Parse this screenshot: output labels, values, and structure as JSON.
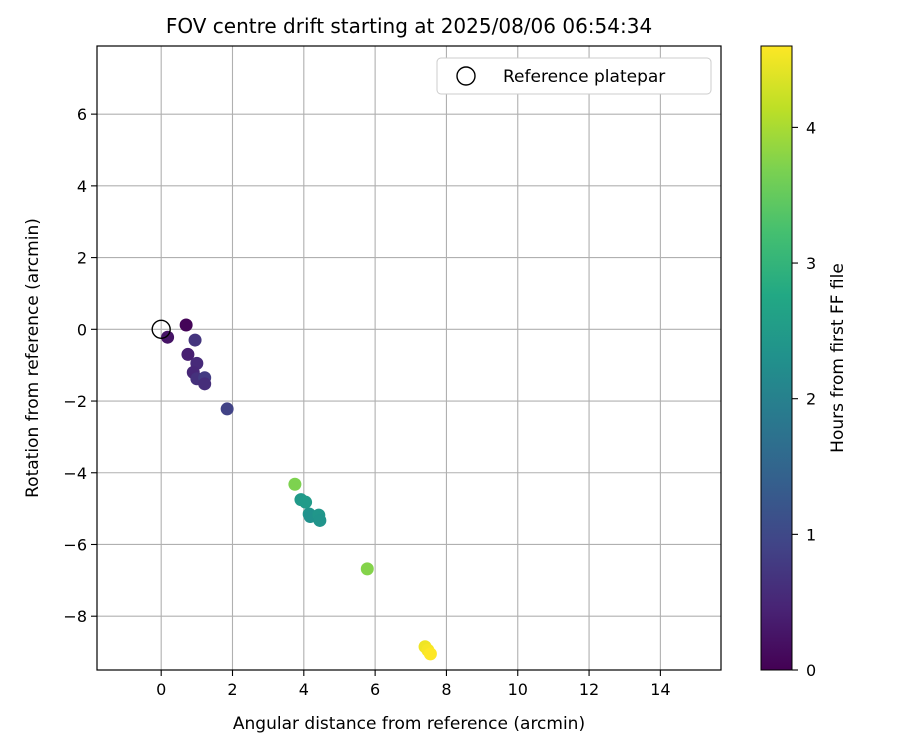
{
  "chart_data": {
    "type": "scatter",
    "title": "FOV centre drift starting at 2025/08/06 06:54:34",
    "xlabel": "Angular distance from reference (arcmin)",
    "ylabel": "Rotation from reference (arcmin)",
    "xlim": [
      -1.8,
      15.7
    ],
    "ylim": [
      -9.5,
      7.9
    ],
    "xticks": [
      0,
      2,
      4,
      6,
      8,
      10,
      12,
      14
    ],
    "yticks": [
      -8,
      -6,
      -4,
      -2,
      0,
      2,
      4,
      6
    ],
    "grid": true,
    "legend": {
      "placement": "top-right",
      "entries": [
        "Reference platepar"
      ]
    },
    "reference_point": {
      "x": 0,
      "y": 0,
      "label": "Reference platepar"
    },
    "colorbar": {
      "label": "Hours from first FF file",
      "range": [
        0,
        4.6
      ],
      "ticks": [
        0,
        1,
        2,
        3,
        4
      ],
      "colormap": "viridis"
    },
    "points": [
      {
        "x": 0.7,
        "y": 0.12,
        "hours": 0.05
      },
      {
        "x": 0.18,
        "y": -0.22,
        "hours": 0.25
      },
      {
        "x": 0.95,
        "y": -0.3,
        "hours": 0.7
      },
      {
        "x": 0.75,
        "y": -0.7,
        "hours": 0.4
      },
      {
        "x": 1.0,
        "y": -0.95,
        "hours": 0.55
      },
      {
        "x": 0.9,
        "y": -1.2,
        "hours": 0.5
      },
      {
        "x": 1.0,
        "y": -1.38,
        "hours": 0.65
      },
      {
        "x": 1.22,
        "y": -1.35,
        "hours": 0.8
      },
      {
        "x": 1.22,
        "y": -1.52,
        "hours": 0.6
      },
      {
        "x": 1.85,
        "y": -2.22,
        "hours": 0.9
      },
      {
        "x": 3.75,
        "y": -4.32,
        "hours": 3.7
      },
      {
        "x": 3.92,
        "y": -4.75,
        "hours": 2.45
      },
      {
        "x": 4.05,
        "y": -4.82,
        "hours": 2.5
      },
      {
        "x": 4.15,
        "y": -5.15,
        "hours": 2.35
      },
      {
        "x": 4.18,
        "y": -5.22,
        "hours": 2.3
      },
      {
        "x": 4.42,
        "y": -5.18,
        "hours": 2.4
      },
      {
        "x": 4.45,
        "y": -5.33,
        "hours": 2.35
      },
      {
        "x": 5.78,
        "y": -6.68,
        "hours": 3.75
      },
      {
        "x": 7.4,
        "y": -8.85,
        "hours": 4.5
      },
      {
        "x": 7.48,
        "y": -8.95,
        "hours": 4.55
      },
      {
        "x": 7.55,
        "y": -9.05,
        "hours": 4.6
      }
    ]
  }
}
